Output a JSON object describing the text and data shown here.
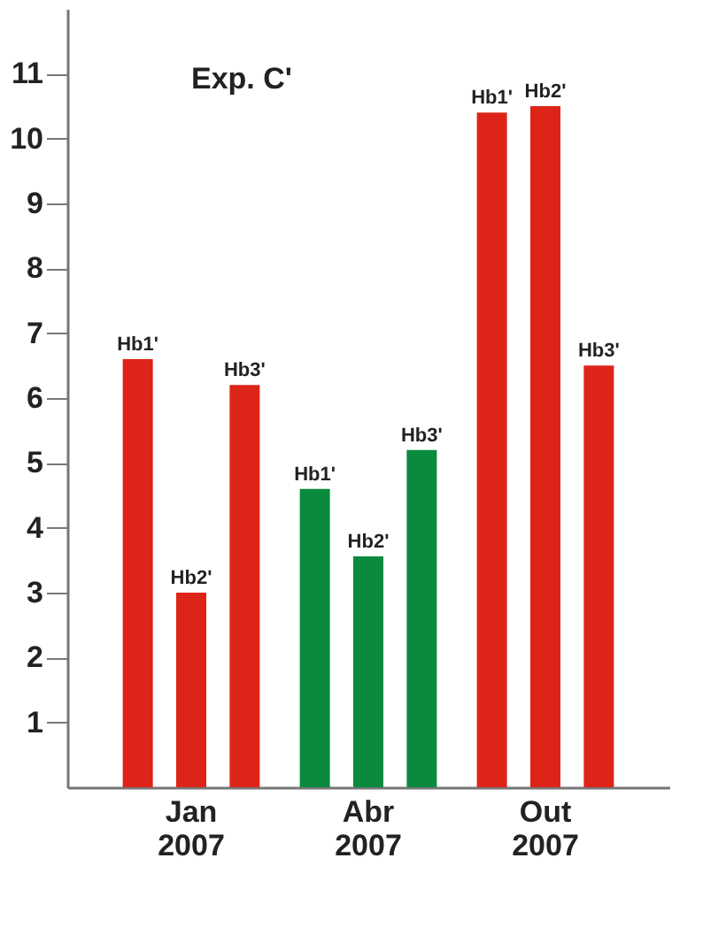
{
  "chart_data": {
    "type": "bar",
    "title": "Exp. C'",
    "categories": [
      "Jan 2007",
      "Abr 2007",
      "Out 2007"
    ],
    "series": [
      {
        "name": "Hb1'",
        "values": [
          6.6,
          4.6,
          10.4
        ],
        "colors": [
          "#dd2418",
          "#0a8a3c",
          "#dd2418"
        ]
      },
      {
        "name": "Hb2'",
        "values": [
          3.0,
          3.56,
          10.5
        ],
        "colors": [
          "#dd2418",
          "#0a8a3c",
          "#dd2418"
        ]
      },
      {
        "name": "Hb3'",
        "values": [
          6.2,
          5.2,
          6.5
        ],
        "colors": [
          "#dd2418",
          "#0a8a3c",
          "#dd2418"
        ]
      }
    ],
    "ylim": [
      0,
      12
    ],
    "yticks": [
      1,
      2,
      3,
      4,
      5,
      6,
      7,
      8,
      9,
      10,
      11
    ],
    "grid": false
  }
}
